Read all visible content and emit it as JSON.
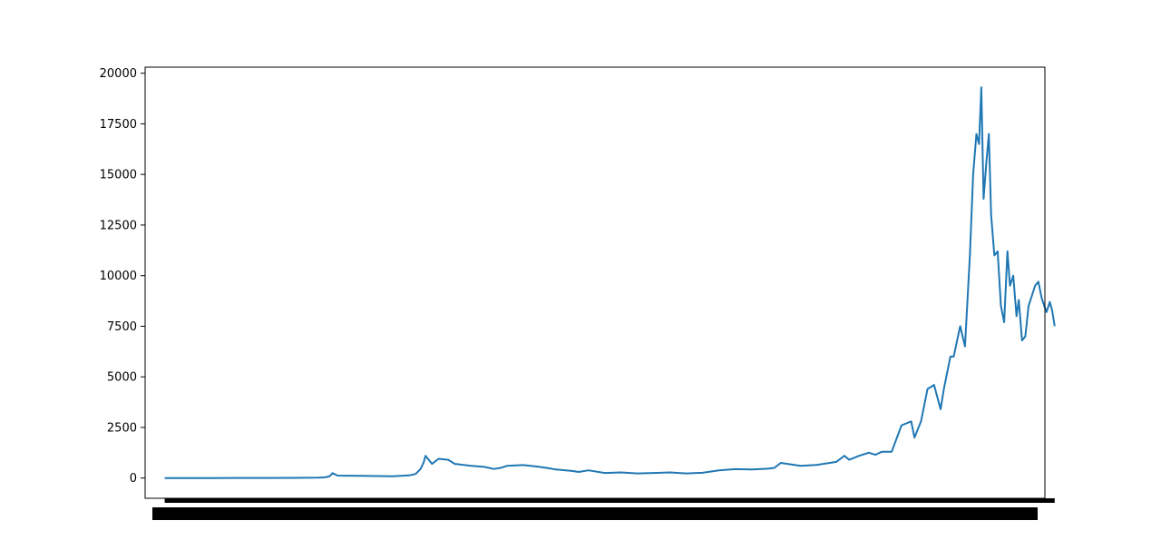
{
  "chart_data": {
    "type": "line",
    "title": "",
    "xlabel": "",
    "ylabel": "",
    "ylim": [
      -1000,
      20300
    ],
    "y_ticks": [
      0,
      2500,
      5000,
      7500,
      10000,
      12500,
      15000,
      17500,
      20000
    ],
    "y_tick_labels": [
      "0",
      "2500",
      "5000",
      "7500",
      "10000",
      "12500",
      "15000",
      "17500",
      "20000"
    ],
    "x_tick_labels_note": "",
    "xlim": [
      -60,
      2700
    ],
    "grid": false,
    "legend": "none",
    "series": [
      {
        "color": "#1f77b4",
        "x": [
          0,
          150,
          300,
          400,
          470,
          490,
          505,
          515,
          530,
          600,
          700,
          750,
          770,
          785,
          795,
          800,
          810,
          820,
          840,
          870,
          890,
          900,
          940,
          980,
          1010,
          1030,
          1050,
          1100,
          1150,
          1180,
          1200,
          1250,
          1270,
          1300,
          1350,
          1400,
          1450,
          1500,
          1550,
          1600,
          1650,
          1700,
          1750,
          1800,
          1850,
          1870,
          1890,
          1950,
          2000,
          2060,
          2085,
          2100,
          2130,
          2160,
          2180,
          2200,
          2230,
          2260,
          2275,
          2290,
          2300,
          2320,
          2340,
          2360,
          2380,
          2390,
          2410,
          2420,
          2440,
          2455,
          2470,
          2480,
          2490,
          2498,
          2505,
          2512,
          2520,
          2528,
          2535,
          2545,
          2555,
          2565,
          2575,
          2585,
          2593,
          2603,
          2613,
          2620,
          2630,
          2640,
          2650,
          2660,
          2670,
          2680,
          2690,
          2698,
          2705,
          2715,
          2722,
          2730
        ],
        "y": [
          0,
          1,
          3,
          8,
          20,
          30,
          80,
          240,
          120,
          110,
          90,
          130,
          200,
          450,
          800,
          1100,
          900,
          700,
          950,
          900,
          700,
          680,
          600,
          550,
          450,
          500,
          600,
          640,
          550,
          480,
          420,
          350,
          300,
          380,
          250,
          280,
          230,
          250,
          280,
          230,
          260,
          380,
          440,
          420,
          460,
          500,
          750,
          600,
          650,
          800,
          1100,
          900,
          1100,
          1250,
          1150,
          1300,
          1300,
          2600,
          2700,
          2800,
          2000,
          2800,
          4400,
          4600,
          3400,
          4400,
          6000,
          6000,
          7500,
          6500,
          11000,
          15000,
          17000,
          16500,
          19300,
          13800,
          15500,
          17000,
          13000,
          11000,
          11200,
          8500,
          7700,
          11200,
          9500,
          10000,
          8000,
          8800,
          6800,
          7000,
          8500,
          9000,
          9500,
          9700,
          8900,
          8500,
          8200,
          8700,
          8300,
          7500
        ]
      }
    ]
  }
}
